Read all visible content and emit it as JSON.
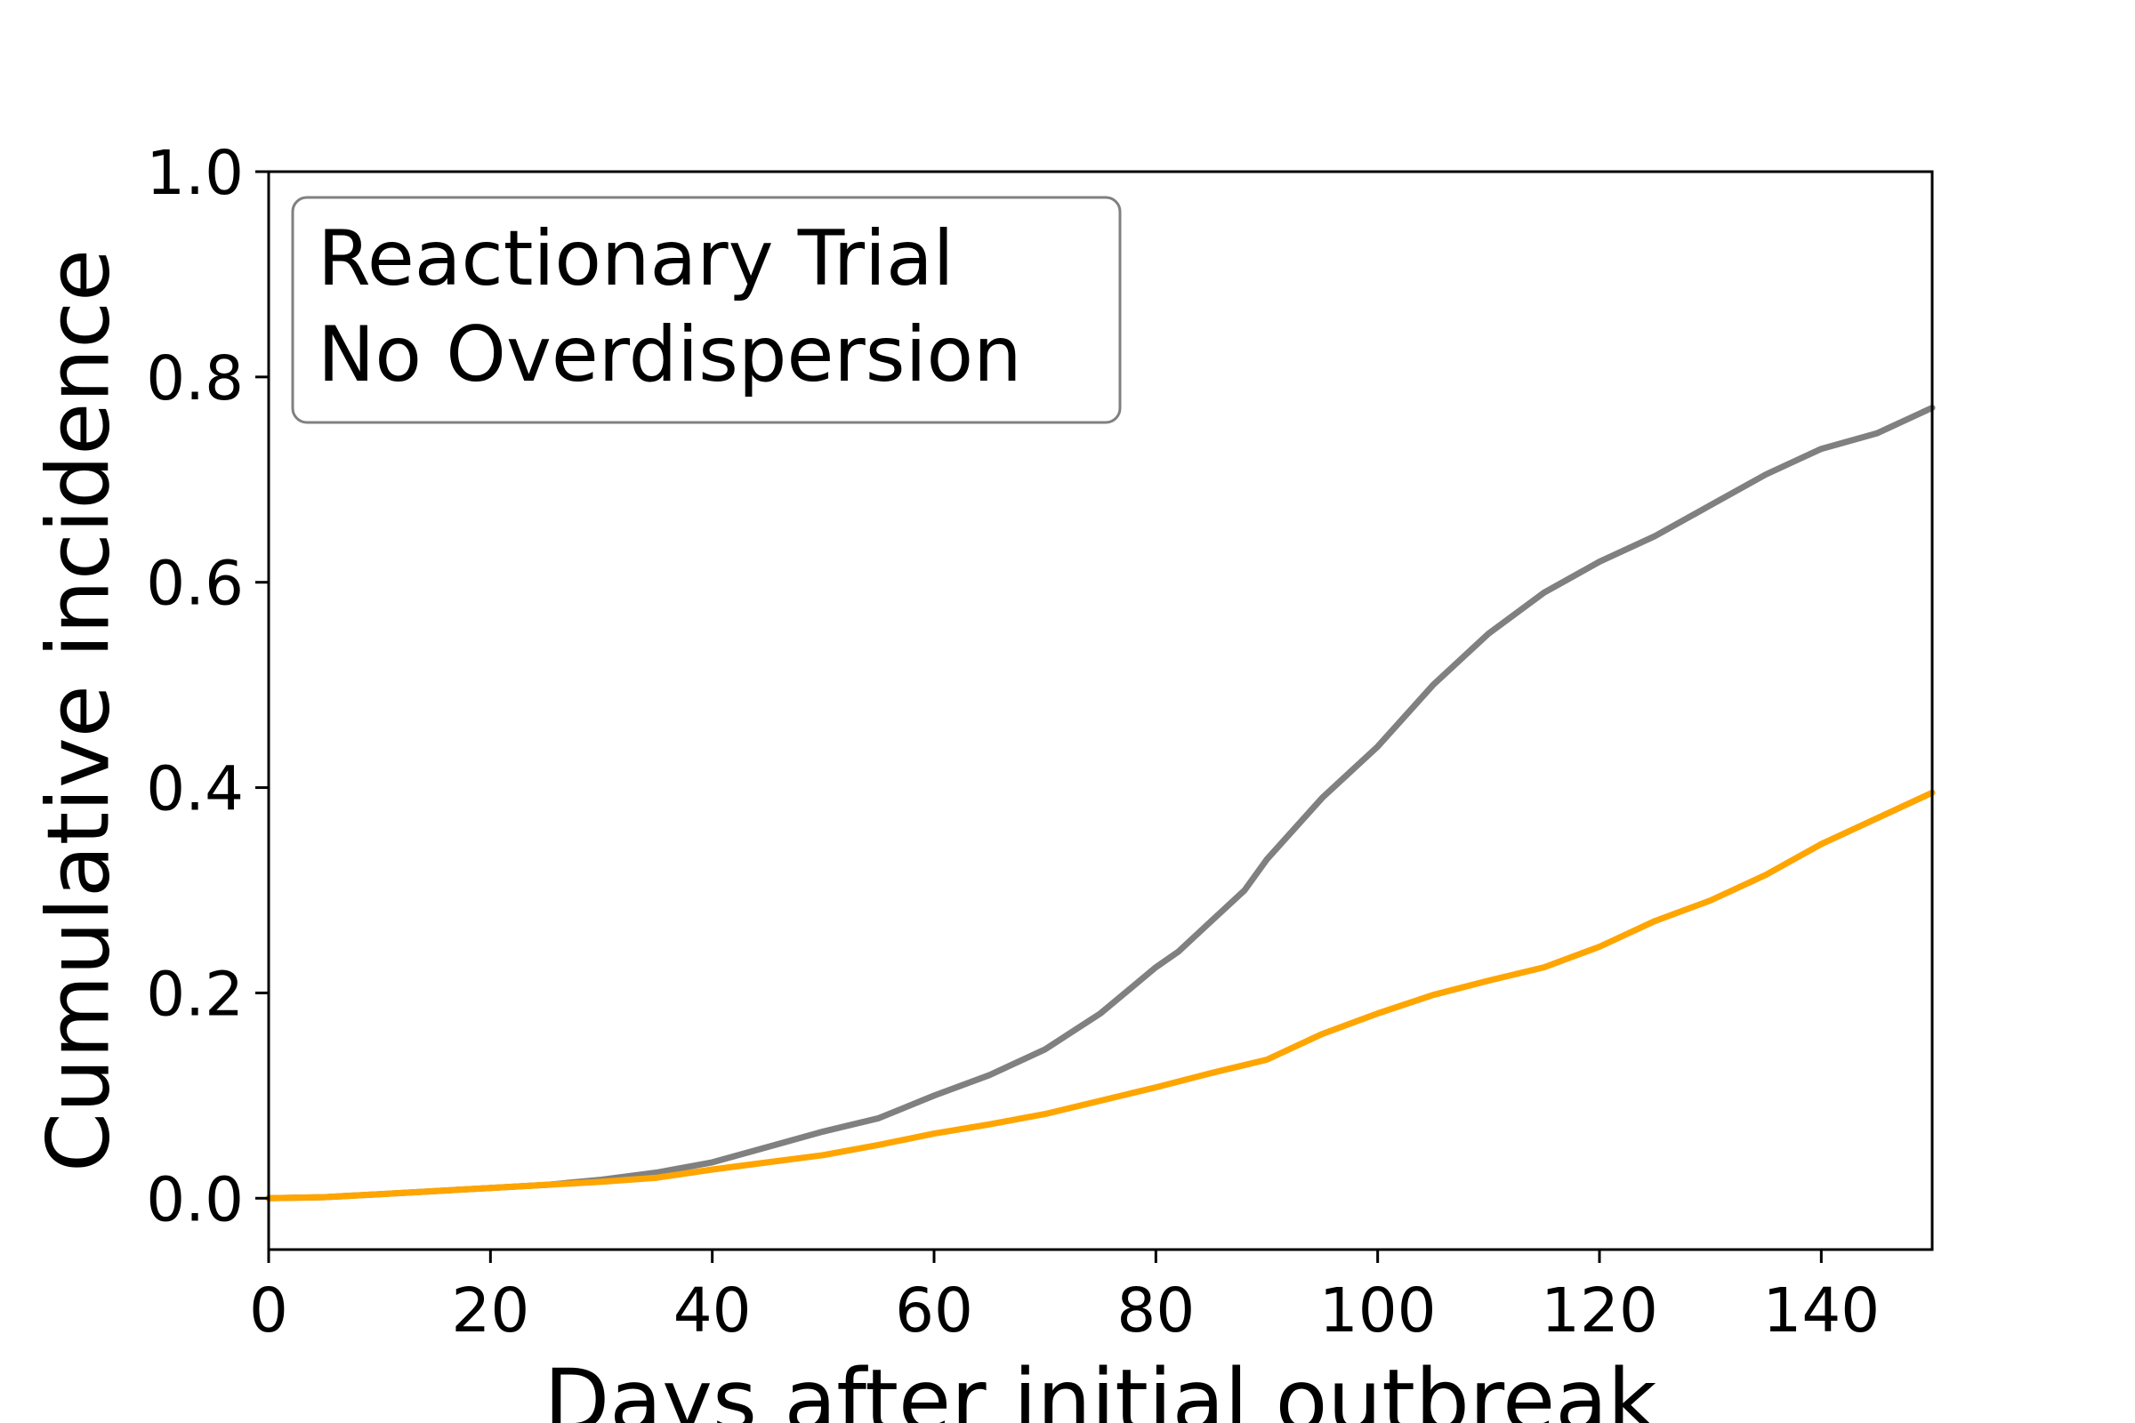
{
  "chart_data": {
    "type": "line",
    "xlabel": "Days after initial outbreak",
    "ylabel": "Cumulative incidence",
    "xlim": [
      0,
      150
    ],
    "ylim": [
      -0.05,
      1.0
    ],
    "x_ticks": [
      0,
      20,
      40,
      60,
      80,
      100,
      120,
      140
    ],
    "y_ticks": [
      0.0,
      0.2,
      0.4,
      0.6,
      0.8,
      1.0
    ],
    "x_tick_labels": [
      "0",
      "20",
      "40",
      "60",
      "80",
      "100",
      "120",
      "140"
    ],
    "y_tick_labels": [
      "0.0",
      "0.2",
      "0.4",
      "0.6",
      "0.8",
      "1.0"
    ],
    "grid": false,
    "legend": null,
    "annotation": {
      "lines": [
        "Reactionary Trial",
        "No Overdispersion"
      ],
      "placement": "top-left"
    },
    "series": [
      {
        "color": "#808080",
        "x": [
          0,
          5,
          10,
          15,
          20,
          25,
          30,
          35,
          40,
          45,
          50,
          55,
          60,
          65,
          70,
          75,
          80,
          82,
          85,
          88,
          90,
          95,
          100,
          105,
          110,
          115,
          120,
          125,
          130,
          135,
          140,
          145,
          150
        ],
        "y": [
          0.0,
          0.001,
          0.004,
          0.007,
          0.01,
          0.013,
          0.018,
          0.025,
          0.035,
          0.05,
          0.065,
          0.078,
          0.1,
          0.12,
          0.145,
          0.18,
          0.225,
          0.24,
          0.27,
          0.3,
          0.33,
          0.39,
          0.44,
          0.5,
          0.55,
          0.59,
          0.62,
          0.645,
          0.675,
          0.705,
          0.73,
          0.745,
          0.77
        ]
      },
      {
        "color": "#FFA500",
        "x": [
          0,
          5,
          10,
          15,
          20,
          25,
          30,
          35,
          40,
          45,
          50,
          55,
          60,
          65,
          70,
          75,
          80,
          85,
          90,
          95,
          100,
          105,
          110,
          115,
          120,
          125,
          130,
          135,
          140,
          145,
          150
        ],
        "y": [
          0.0,
          0.001,
          0.004,
          0.007,
          0.01,
          0.013,
          0.016,
          0.02,
          0.028,
          0.035,
          0.042,
          0.052,
          0.063,
          0.072,
          0.082,
          0.095,
          0.108,
          0.122,
          0.135,
          0.16,
          0.18,
          0.198,
          0.212,
          0.225,
          0.245,
          0.27,
          0.29,
          0.315,
          0.345,
          0.37,
          0.395
        ]
      }
    ]
  }
}
